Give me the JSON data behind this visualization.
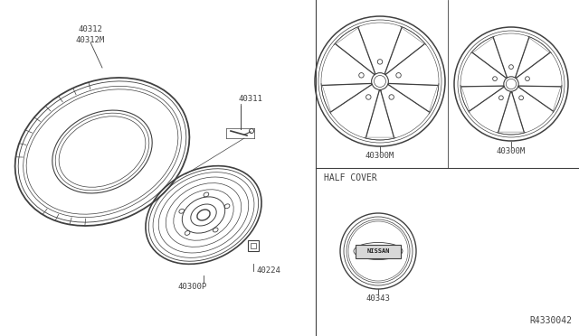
{
  "bg_color": "#ffffff",
  "line_color": "#404040",
  "labels": {
    "tire_top": "40312\n40312M",
    "valve": "40311",
    "wheel_label": "40300P",
    "nut": "40224",
    "wheel1": "40300M",
    "wheel2": "40300M",
    "half_cover": "HALF COVER",
    "center_cap": "40343",
    "part_num": "R4330042"
  },
  "fontsize": 6.5
}
